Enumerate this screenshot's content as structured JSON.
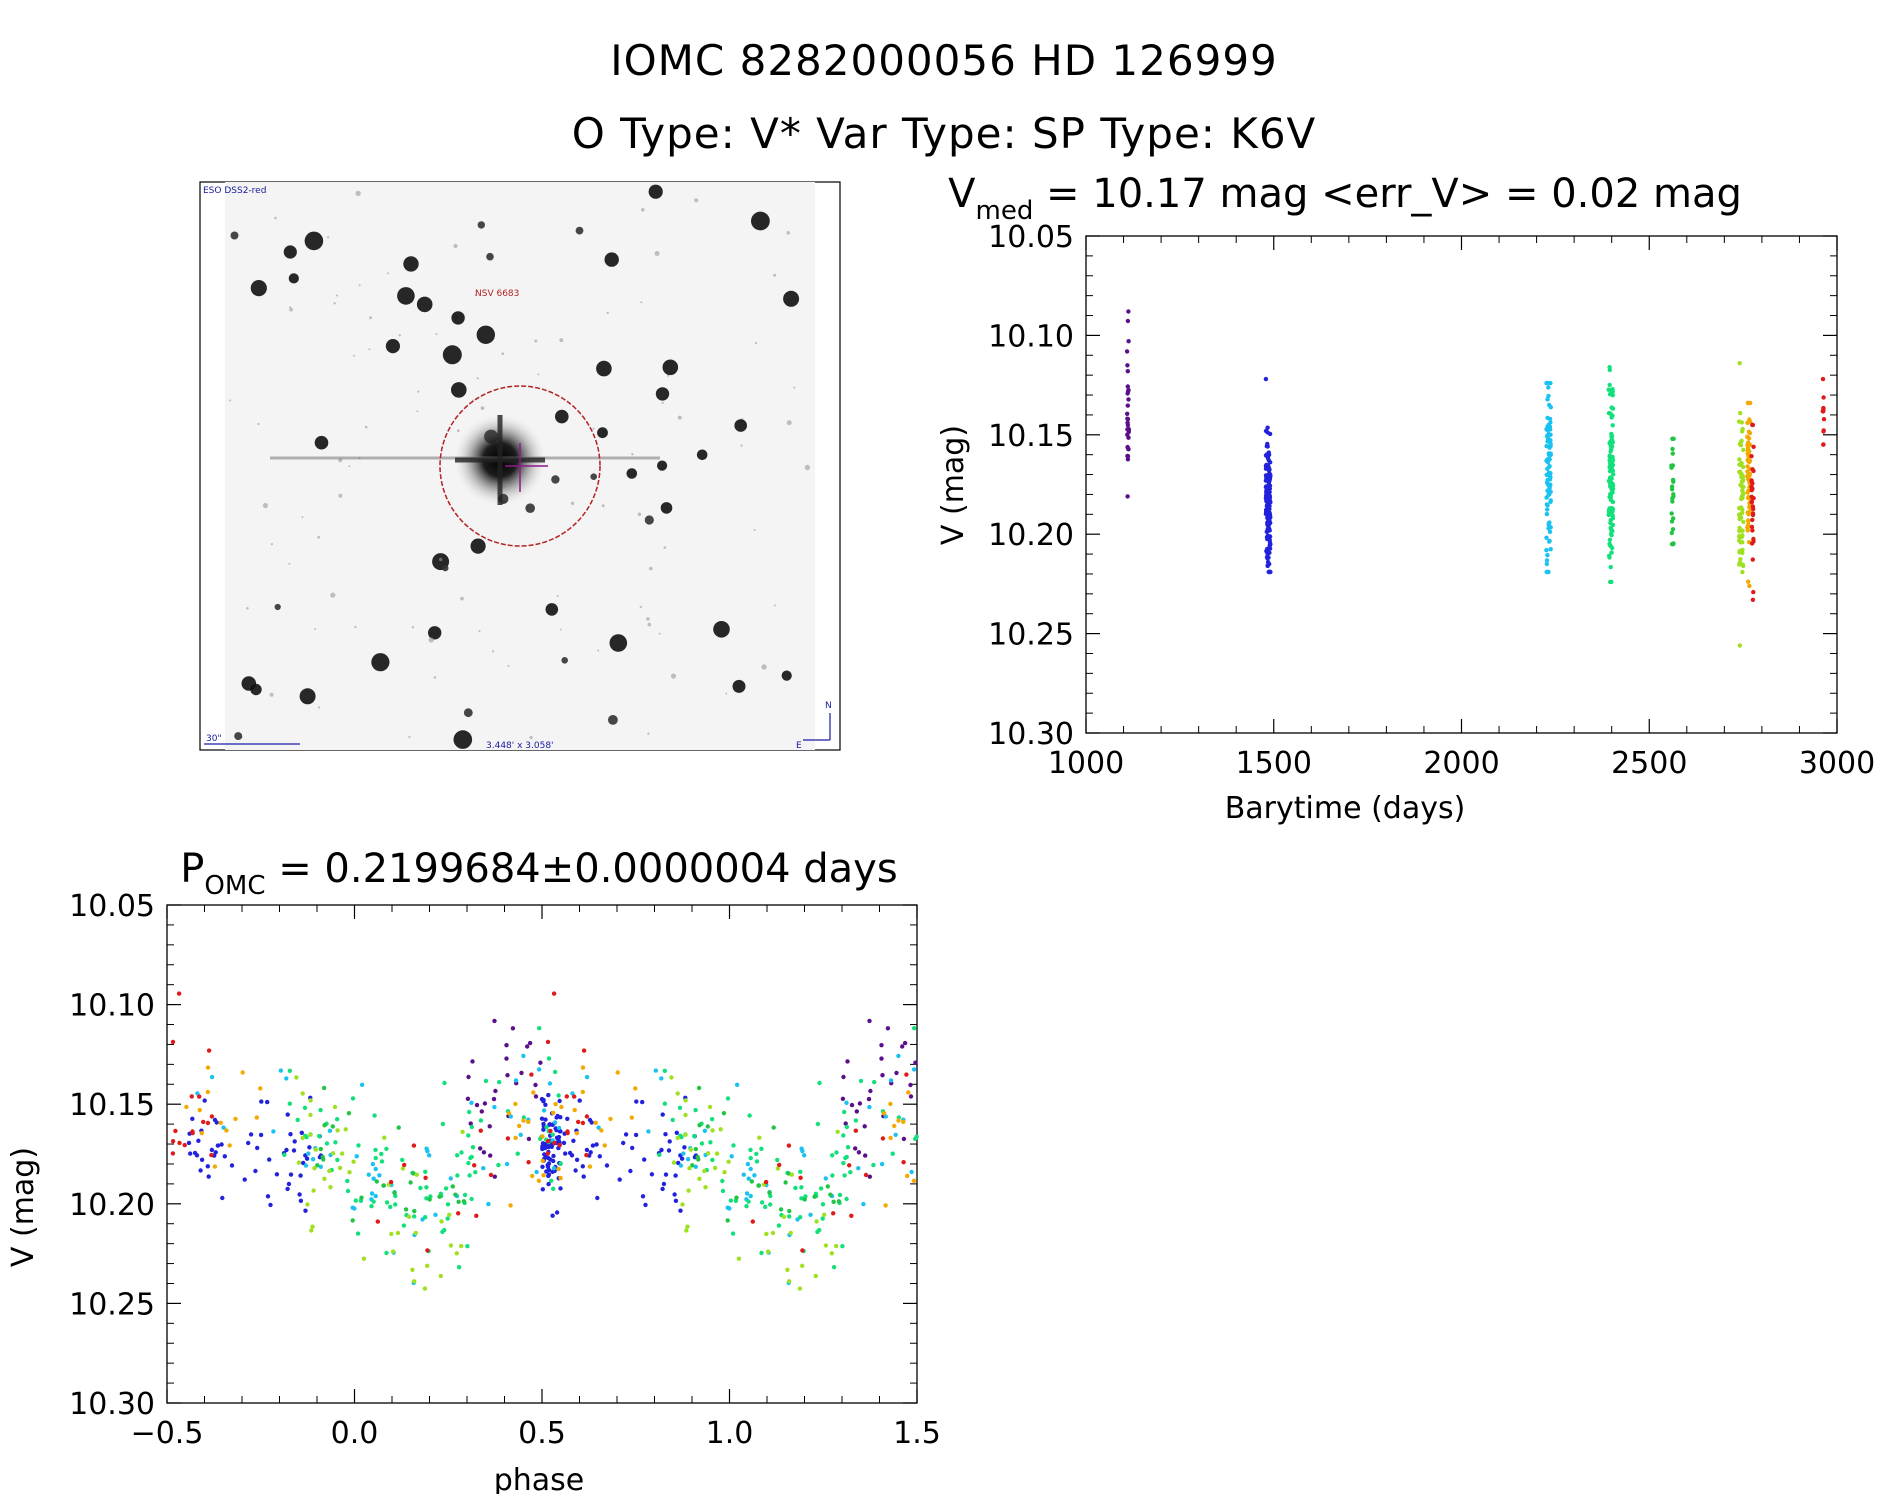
{
  "header": {
    "line1": "IOMC 8282000056    HD 126999",
    "line2": "O Type: V*  Var Type:    SP Type: K6V"
  },
  "image_panel": {
    "survey_label": "ESO DSS2-red",
    "object_label": "NSV 6683",
    "scale_label": "30\"",
    "fov_label": "3.448' x 3.058'",
    "north_label": "N",
    "east_label": "E",
    "marker_color": "#b22222",
    "crosshair_color": "#8b1a8b"
  },
  "colors": {
    "purple": "#5b0f8a",
    "blue": "#2222dd",
    "skyblue": "#19c2f0",
    "green": "#12e07a",
    "midgreen": "#22c444",
    "lime": "#9fe020",
    "orange": "#f2a900",
    "red": "#e01a1a"
  },
  "chart_data": [
    {
      "id": "lightcurve",
      "type": "scatter",
      "title_main": "V",
      "title_sub": "med",
      "title_rest": " = 10.17 mag <err_V> = 0.02 mag",
      "xlabel": "Barytime (days)",
      "ylabel": "V (mag)",
      "xlim": [
        1000,
        3000
      ],
      "ylim": [
        10.3,
        10.05
      ],
      "y_inverted": true,
      "xticks": [
        1000,
        1500,
        2000,
        2500,
        3000
      ],
      "xtick_labels": [
        "1000",
        "1500",
        "2000",
        "2500",
        "3000"
      ],
      "yticks": [
        10.05,
        10.1,
        10.15,
        10.2,
        10.25,
        10.3
      ],
      "ytick_labels": [
        "10.05",
        "10.10",
        "10.15",
        "10.20",
        "10.25",
        "10.30"
      ],
      "series": [
        {
          "color_key": "purple",
          "x_center": 1112,
          "x_spread": 3,
          "n": 30,
          "ymin": 10.088,
          "ymax": 10.181,
          "ymode": 10.14,
          "yspread": 0.018
        },
        {
          "color_key": "blue",
          "x_center": 1485,
          "x_spread": 6,
          "n": 160,
          "ymin": 10.122,
          "ymax": 10.219,
          "ymode": 10.185,
          "yspread": 0.016
        },
        {
          "color_key": "skyblue",
          "x_center": 2232,
          "x_spread": 6,
          "n": 90,
          "ymin": 10.124,
          "ymax": 10.219,
          "ymode": 10.17,
          "yspread": 0.022
        },
        {
          "color_key": "green",
          "x_center": 2398,
          "x_spread": 6,
          "n": 110,
          "ymin": 10.116,
          "ymax": 10.224,
          "ymode": 10.17,
          "yspread": 0.02
        },
        {
          "color_key": "midgreen",
          "x_center": 2562,
          "x_spread": 3,
          "n": 25,
          "ymin": 10.152,
          "ymax": 10.205,
          "ymode": 10.18,
          "yspread": 0.014
        },
        {
          "color_key": "lime",
          "x_center": 2745,
          "x_spread": 6,
          "n": 70,
          "ymin": 10.114,
          "ymax": 10.256,
          "ymode": 10.18,
          "yspread": 0.02
        },
        {
          "color_key": "orange",
          "x_center": 2765,
          "x_spread": 4,
          "n": 60,
          "ymin": 10.134,
          "ymax": 10.226,
          "ymode": 10.17,
          "yspread": 0.018
        },
        {
          "color_key": "red",
          "x_center": 2775,
          "x_spread": 3,
          "n": 30,
          "ymin": 10.145,
          "ymax": 10.233,
          "ymode": 10.18,
          "yspread": 0.016
        },
        {
          "color_key": "red",
          "x_center": 2965,
          "x_spread": 3,
          "n": 12,
          "ymin": 10.122,
          "ymax": 10.155,
          "ymode": 10.14,
          "yspread": 0.01
        }
      ]
    },
    {
      "id": "phase",
      "type": "scatter",
      "title_main": "P",
      "title_sub": "OMC",
      "title_rest": " = 0.2199684±0.0000004 days",
      "xlabel": "phase",
      "ylabel": "V (mag)",
      "xlim": [
        -0.5,
        1.5
      ],
      "ylim": [
        10.3,
        10.05
      ],
      "y_inverted": true,
      "xticks": [
        -0.5,
        0.0,
        0.5,
        1.0,
        1.5
      ],
      "xtick_labels": [
        "−0.5",
        "0.0",
        "0.5",
        "1.0",
        "1.5"
      ],
      "yticks": [
        10.05,
        10.1,
        10.15,
        10.2,
        10.25,
        10.3
      ],
      "ytick_labels": [
        "10.05",
        "10.10",
        "10.15",
        "10.20",
        "10.25",
        "10.30"
      ],
      "period_days": 0.2199684,
      "repeat_offset": 1.0,
      "model": {
        "mean": 10.172,
        "amp1": 0.018,
        "phase_min": 0.17,
        "amp2": 0.008
      },
      "series": [
        {
          "color_key": "purple",
          "phase_ranges": [
            [
              0.3,
              0.5
            ]
          ],
          "n": 28,
          "offset": -0.022,
          "scatter": 0.016
        },
        {
          "color_key": "blue",
          "phase_ranges": [
            [
              -0.45,
              -0.08
            ],
            [
              0.5,
              0.55
            ]
          ],
          "n": 130,
          "offset": 0.012,
          "scatter": 0.013
        },
        {
          "color_key": "skyblue",
          "phase_ranges": [
            [
              -0.45,
              0.55
            ]
          ],
          "n": 55,
          "offset": -0.004,
          "scatter": 0.018
        },
        {
          "color_key": "green",
          "phase_ranges": [
            [
              -0.2,
              0.55
            ]
          ],
          "n": 95,
          "offset": 0.0,
          "scatter": 0.016
        },
        {
          "color_key": "midgreen",
          "phase_ranges": [
            [
              -0.1,
              0.3
            ]
          ],
          "n": 25,
          "offset": 0.006,
          "scatter": 0.014
        },
        {
          "color_key": "lime",
          "phase_ranges": [
            [
              -0.2,
              0.3
            ]
          ],
          "n": 45,
          "offset": 0.014,
          "scatter": 0.02
        },
        {
          "color_key": "orange",
          "phase_ranges": [
            [
              -0.5,
              -0.2
            ],
            [
              0.4,
              0.55
            ]
          ],
          "n": 30,
          "offset": -0.002,
          "scatter": 0.018
        },
        {
          "color_key": "red",
          "phase_ranges": [
            [
              -0.5,
              -0.38
            ],
            [
              0.05,
              0.55
            ]
          ],
          "n": 30,
          "offset": 0.0,
          "scatter": 0.02
        }
      ]
    }
  ]
}
